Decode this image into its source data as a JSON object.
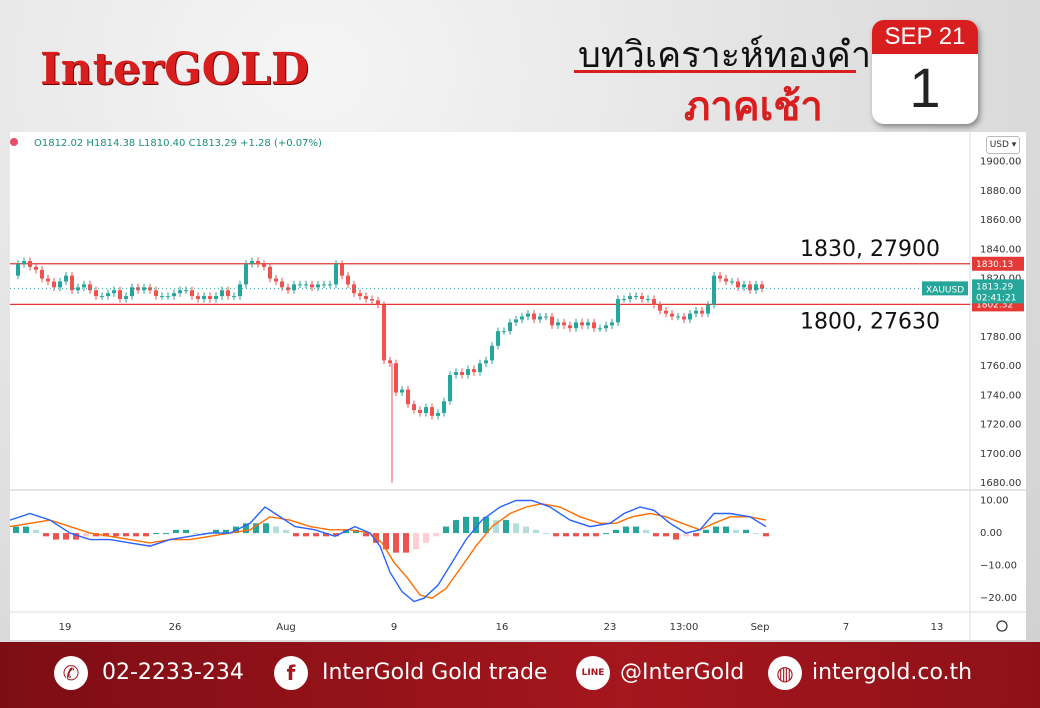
{
  "header": {
    "logo": "InterGOLD",
    "title_line1": "บทวิเคราะห์ทองคำ",
    "title_line2": "ภาคเช้า",
    "calendar_month": "SEP 21",
    "calendar_day": "1"
  },
  "chart_header": {
    "o": "O1812.02",
    "h": "H1814.38",
    "l": "L1810.40",
    "c": "C1813.29",
    "change": "+1.28 (+0.07%)",
    "currency_button": "USD"
  },
  "annotations": {
    "resistance_label": "1830, 27900",
    "support_label": "1800, 27630"
  },
  "price_tags": {
    "resistance": "1830.13",
    "support": "1802.32",
    "symbol": "XAUUSD",
    "last": "1813.29",
    "countdown": "02:41:21"
  },
  "colors": {
    "up": "#26a69a",
    "down": "#ef5350",
    "level_line": "#e53935",
    "macd_line": "#2962ff",
    "signal_line": "#ff6d00",
    "hist_up_strong": "#26a69a",
    "hist_up_weak": "#b2dfdb",
    "hist_down_strong": "#ef5350",
    "hist_down_weak": "#ffcdd2"
  },
  "chart_data": [
    {
      "type": "candlestick",
      "symbol": "XAUUSD",
      "ylim": [
        1678,
        1908
      ],
      "y_ticks": [
        "1900.00",
        "1880.00",
        "1860.00",
        "1840.00",
        "1820.00",
        "1800.00",
        "1780.00",
        "1760.00",
        "1740.00",
        "1720.00",
        "1700.00",
        "1680.00"
      ],
      "x_ticks": [
        "19",
        "26",
        "Aug",
        "9",
        "16",
        "23",
        "13:00",
        "Sep",
        "7",
        "13"
      ],
      "levels": [
        1830.13,
        1802.32
      ],
      "close_path": [
        [
          0,
          1822
        ],
        [
          8,
          1830
        ],
        [
          14,
          1832
        ],
        [
          20,
          1828
        ],
        [
          26,
          1826
        ],
        [
          32,
          1820
        ],
        [
          38,
          1818
        ],
        [
          44,
          1814
        ],
        [
          50,
          1818
        ],
        [
          56,
          1822
        ],
        [
          62,
          1812
        ],
        [
          68,
          1814
        ],
        [
          74,
          1816
        ],
        [
          80,
          1812
        ],
        [
          86,
          1808
        ],
        [
          92,
          1808
        ],
        [
          98,
          1810
        ],
        [
          104,
          1812
        ],
        [
          110,
          1806
        ],
        [
          116,
          1808
        ],
        [
          122,
          1814
        ],
        [
          128,
          1812
        ],
        [
          134,
          1814
        ],
        [
          140,
          1812
        ],
        [
          146,
          1808
        ],
        [
          152,
          1808
        ],
        [
          158,
          1808
        ],
        [
          164,
          1810
        ],
        [
          170,
          1812
        ],
        [
          176,
          1812
        ],
        [
          182,
          1808
        ],
        [
          188,
          1806
        ],
        [
          194,
          1808
        ],
        [
          200,
          1806
        ],
        [
          206,
          1808
        ],
        [
          212,
          1812
        ],
        [
          218,
          1808
        ],
        [
          224,
          1808
        ],
        [
          230,
          1816
        ],
        [
          236,
          1830
        ],
        [
          242,
          1832
        ],
        [
          248,
          1830
        ],
        [
          254,
          1828
        ],
        [
          260,
          1820
        ],
        [
          266,
          1818
        ],
        [
          272,
          1814
        ],
        [
          278,
          1812
        ],
        [
          284,
          1816
        ],
        [
          290,
          1816
        ],
        [
          296,
          1816
        ],
        [
          302,
          1814
        ],
        [
          308,
          1816
        ],
        [
          314,
          1816
        ],
        [
          320,
          1816
        ],
        [
          326,
          1830
        ],
        [
          332,
          1822
        ],
        [
          338,
          1816
        ],
        [
          344,
          1810
        ],
        [
          350,
          1808
        ],
        [
          356,
          1806
        ],
        [
          362,
          1805
        ],
        [
          368,
          1802
        ],
        [
          374,
          1764
        ],
        [
          380,
          1762
        ],
        [
          386,
          1742
        ],
        [
          392,
          1744
        ],
        [
          398,
          1734
        ],
        [
          404,
          1730
        ],
        [
          410,
          1728
        ],
        [
          416,
          1732
        ],
        [
          422,
          1726
        ],
        [
          428,
          1728
        ],
        [
          434,
          1736
        ],
        [
          440,
          1754
        ],
        [
          446,
          1756
        ],
        [
          452,
          1754
        ],
        [
          458,
          1758
        ],
        [
          464,
          1756
        ],
        [
          470,
          1762
        ],
        [
          476,
          1764
        ],
        [
          482,
          1774
        ],
        [
          488,
          1784
        ],
        [
          494,
          1784
        ],
        [
          500,
          1790
        ],
        [
          506,
          1792
        ],
        [
          512,
          1794
        ],
        [
          518,
          1796
        ],
        [
          524,
          1792
        ],
        [
          530,
          1794
        ],
        [
          536,
          1794
        ],
        [
          542,
          1788
        ],
        [
          548,
          1790
        ],
        [
          554,
          1788
        ],
        [
          560,
          1786
        ],
        [
          566,
          1790
        ],
        [
          572,
          1788
        ],
        [
          578,
          1790
        ],
        [
          584,
          1786
        ],
        [
          590,
          1786
        ],
        [
          596,
          1788
        ],
        [
          602,
          1790
        ],
        [
          608,
          1806
        ],
        [
          614,
          1806
        ],
        [
          620,
          1808
        ],
        [
          626,
          1808
        ],
        [
          632,
          1806
        ],
        [
          638,
          1806
        ],
        [
          644,
          1802
        ],
        [
          650,
          1798
        ],
        [
          656,
          1796
        ],
        [
          662,
          1794
        ],
        [
          668,
          1794
        ],
        [
          674,
          1792
        ],
        [
          680,
          1796
        ],
        [
          686,
          1798
        ],
        [
          692,
          1796
        ],
        [
          698,
          1802
        ],
        [
          704,
          1822
        ],
        [
          710,
          1820
        ],
        [
          716,
          1818
        ],
        [
          722,
          1818
        ],
        [
          728,
          1814
        ],
        [
          734,
          1816
        ],
        [
          740,
          1812
        ],
        [
          746,
          1816
        ],
        [
          752,
          1813
        ]
      ],
      "spike_low": {
        "x": 382,
        "low": 1680
      },
      "x_range": [
        0,
        960
      ]
    },
    {
      "type": "macd",
      "ylim": [
        -23,
        12
      ],
      "y_ticks": [
        "10.00",
        "0.00",
        "−10.00",
        "−20.00"
      ],
      "macd": [
        [
          0,
          4
        ],
        [
          20,
          6
        ],
        [
          40,
          4
        ],
        [
          60,
          0
        ],
        [
          80,
          -2
        ],
        [
          100,
          -2
        ],
        [
          120,
          -3
        ],
        [
          140,
          -4
        ],
        [
          160,
          -2
        ],
        [
          180,
          -1
        ],
        [
          200,
          0
        ],
        [
          220,
          0
        ],
        [
          240,
          3
        ],
        [
          255,
          8
        ],
        [
          265,
          6
        ],
        [
          285,
          2
        ],
        [
          305,
          1
        ],
        [
          325,
          -1
        ],
        [
          345,
          2
        ],
        [
          360,
          0
        ],
        [
          370,
          -4
        ],
        [
          380,
          -12
        ],
        [
          392,
          -18
        ],
        [
          404,
          -21
        ],
        [
          414,
          -20
        ],
        [
          428,
          -16
        ],
        [
          440,
          -10
        ],
        [
          456,
          -2
        ],
        [
          472,
          4
        ],
        [
          490,
          8
        ],
        [
          506,
          10
        ],
        [
          522,
          10
        ],
        [
          540,
          8
        ],
        [
          560,
          4
        ],
        [
          580,
          2
        ],
        [
          600,
          3
        ],
        [
          614,
          6
        ],
        [
          630,
          8
        ],
        [
          644,
          7
        ],
        [
          660,
          3
        ],
        [
          676,
          0
        ],
        [
          690,
          1
        ],
        [
          704,
          6
        ],
        [
          720,
          6
        ],
        [
          740,
          5
        ],
        [
          756,
          2
        ]
      ],
      "signal": [
        [
          0,
          2
        ],
        [
          20,
          3
        ],
        [
          40,
          4
        ],
        [
          60,
          2
        ],
        [
          80,
          0
        ],
        [
          100,
          -1
        ],
        [
          120,
          -2
        ],
        [
          140,
          -3
        ],
        [
          160,
          -2
        ],
        [
          180,
          -2
        ],
        [
          200,
          -1
        ],
        [
          220,
          0
        ],
        [
          240,
          1
        ],
        [
          260,
          5
        ],
        [
          280,
          4
        ],
        [
          300,
          2
        ],
        [
          320,
          1
        ],
        [
          340,
          1
        ],
        [
          360,
          0
        ],
        [
          372,
          -3
        ],
        [
          384,
          -9
        ],
        [
          398,
          -14
        ],
        [
          410,
          -19
        ],
        [
          422,
          -20
        ],
        [
          436,
          -17
        ],
        [
          450,
          -11
        ],
        [
          466,
          -4
        ],
        [
          482,
          2
        ],
        [
          500,
          6
        ],
        [
          516,
          8
        ],
        [
          532,
          9
        ],
        [
          550,
          8
        ],
        [
          570,
          5
        ],
        [
          590,
          3
        ],
        [
          606,
          3
        ],
        [
          622,
          5
        ],
        [
          640,
          6
        ],
        [
          656,
          5
        ],
        [
          672,
          3
        ],
        [
          690,
          1
        ],
        [
          704,
          3
        ],
        [
          720,
          5
        ],
        [
          740,
          5
        ],
        [
          756,
          4
        ]
      ],
      "hist": [
        [
          6,
          2
        ],
        [
          16,
          2
        ],
        [
          26,
          1
        ],
        [
          36,
          -1
        ],
        [
          46,
          -2
        ],
        [
          56,
          -2
        ],
        [
          66,
          -2
        ],
        [
          76,
          -1
        ],
        [
          86,
          -1
        ],
        [
          96,
          -1
        ],
        [
          106,
          -1
        ],
        [
          116,
          -1
        ],
        [
          126,
          -1
        ],
        [
          136,
          -1
        ],
        [
          146,
          0
        ],
        [
          156,
          0
        ],
        [
          166,
          1
        ],
        [
          176,
          1
        ],
        [
          186,
          0
        ],
        [
          196,
          0
        ],
        [
          206,
          1
        ],
        [
          216,
          1
        ],
        [
          226,
          2
        ],
        [
          236,
          3
        ],
        [
          246,
          3
        ],
        [
          256,
          3
        ],
        [
          266,
          2
        ],
        [
          276,
          1
        ],
        [
          286,
          -1
        ],
        [
          296,
          -1
        ],
        [
          306,
          -1
        ],
        [
          316,
          -1
        ],
        [
          326,
          -1
        ],
        [
          336,
          1
        ],
        [
          346,
          1
        ],
        [
          356,
          -1
        ],
        [
          366,
          -3
        ],
        [
          376,
          -5
        ],
        [
          386,
          -6
        ],
        [
          396,
          -6
        ],
        [
          406,
          -5
        ],
        [
          416,
          -3
        ],
        [
          426,
          -1
        ],
        [
          436,
          2
        ],
        [
          446,
          4
        ],
        [
          456,
          5
        ],
        [
          466,
          5
        ],
        [
          476,
          5
        ],
        [
          486,
          4
        ],
        [
          496,
          4
        ],
        [
          506,
          3
        ],
        [
          516,
          2
        ],
        [
          526,
          1
        ],
        [
          536,
          0
        ],
        [
          546,
          -1
        ],
        [
          556,
          -1
        ],
        [
          566,
          -1
        ],
        [
          576,
          -1
        ],
        [
          586,
          -1
        ],
        [
          596,
          0
        ],
        [
          606,
          1
        ],
        [
          616,
          2
        ],
        [
          626,
          2
        ],
        [
          636,
          1
        ],
        [
          646,
          -1
        ],
        [
          656,
          -1
        ],
        [
          666,
          -2
        ],
        [
          676,
          -1
        ],
        [
          686,
          -1
        ],
        [
          696,
          1
        ],
        [
          706,
          2
        ],
        [
          716,
          2
        ],
        [
          726,
          1
        ],
        [
          736,
          1
        ],
        [
          746,
          0
        ],
        [
          756,
          -1
        ]
      ],
      "x_range": [
        0,
        960
      ]
    }
  ],
  "footer": {
    "phone": "02-2233-234",
    "facebook": "InterGold Gold trade",
    "line": "@InterGold",
    "web": "intergold.co.th",
    "phone_icon": "phone-icon",
    "facebook_icon": "facebook-icon",
    "line_icon": "line-icon",
    "web_icon": "globe-icon"
  }
}
